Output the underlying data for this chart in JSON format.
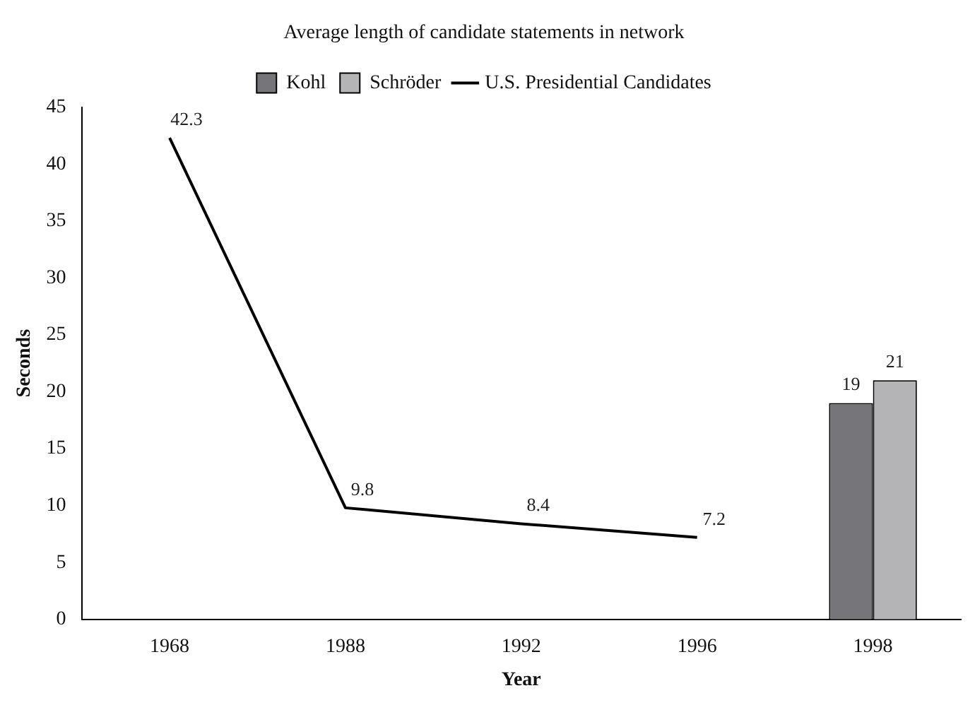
{
  "chart_data": {
    "type": "bar",
    "title": "Average length of candidate statements in network",
    "xlabel": "Year",
    "ylabel": "Seconds",
    "categories": [
      "1968",
      "1988",
      "1992",
      "1996",
      "1998"
    ],
    "series": [
      {
        "name": "Kohl",
        "color": "#76767a",
        "values": [
          null,
          null,
          null,
          null,
          19
        ]
      },
      {
        "name": "Schröder",
        "color": "#b4b4b6",
        "values": [
          null,
          null,
          null,
          null,
          21
        ]
      },
      {
        "name": "U.S. Presidential Candidates",
        "type": "line",
        "color": "#000000",
        "values": [
          42.3,
          9.8,
          8.4,
          7.2,
          null
        ]
      }
    ],
    "ylim": [
      0,
      45
    ],
    "yticks": [
      0,
      5,
      10,
      15,
      20,
      25,
      30,
      35,
      40,
      45
    ],
    "grid": false,
    "legend": "top",
    "marker": "none",
    "line_style": "solid",
    "data_labels": true
  }
}
